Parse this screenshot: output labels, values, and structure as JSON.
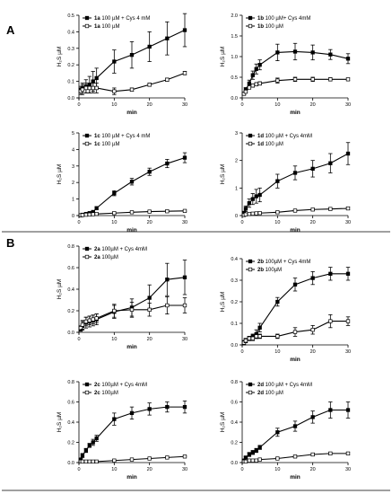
{
  "panel_labels": [
    "A",
    "B"
  ],
  "chart_data": [
    {
      "type": "line",
      "panel": "A",
      "xlabel": "min",
      "ylabel": "H₂S µM",
      "xlim": [
        0,
        30
      ],
      "ylim": [
        0,
        0.5
      ],
      "xticks": [
        "0",
        "10",
        "20",
        "30"
      ],
      "yticks": [
        "0.0",
        "0.1",
        "0.2",
        "0.3",
        "0.4",
        "0.5"
      ],
      "series": [
        {
          "compound": "1a",
          "label": " 100 µM + Cys 4 mM",
          "marker": "square-filled",
          "x": [
            0.5,
            1,
            2,
            3,
            4,
            5,
            10,
            15,
            20,
            25,
            30
          ],
          "y": [
            0.05,
            0.06,
            0.07,
            0.08,
            0.1,
            0.12,
            0.22,
            0.26,
            0.31,
            0.36,
            0.41
          ],
          "err": [
            0.02,
            0.03,
            0.04,
            0.05,
            0.06,
            0.06,
            0.07,
            0.08,
            0.09,
            0.1,
            0.1
          ]
        },
        {
          "compound": "1a",
          "label": " 100 µM",
          "marker": "square-open",
          "x": [
            0.5,
            1,
            2,
            3,
            4,
            5,
            10,
            15,
            20,
            25,
            30
          ],
          "y": [
            0.04,
            0.05,
            0.06,
            0.06,
            0.06,
            0.06,
            0.04,
            0.05,
            0.08,
            0.11,
            0.15
          ],
          "err": [
            0.02,
            0.03,
            0.03,
            0.03,
            0.03,
            0.03,
            0.02,
            0.01,
            0.01,
            0.01,
            0.01
          ]
        }
      ]
    },
    {
      "type": "line",
      "panel": "A",
      "xlabel": "min",
      "ylabel": "H₂S µM",
      "xlim": [
        0,
        30
      ],
      "ylim": [
        0,
        2.0
      ],
      "xticks": [
        "0",
        "10",
        "20",
        "30"
      ],
      "yticks": [
        "0.0",
        "0.5",
        "1.0",
        "1.5",
        "2.0"
      ],
      "series": [
        {
          "compound": "1b",
          "label": " 100 µM+ Cys 4mM",
          "marker": "square-filled",
          "x": [
            0.5,
            1,
            2,
            3,
            4,
            5,
            10,
            15,
            20,
            25,
            30
          ],
          "y": [
            0.1,
            0.2,
            0.35,
            0.55,
            0.7,
            0.8,
            1.1,
            1.12,
            1.1,
            1.05,
            0.95
          ],
          "err": [
            0.02,
            0.05,
            0.08,
            0.1,
            0.12,
            0.12,
            0.2,
            0.2,
            0.18,
            0.12,
            0.12
          ]
        },
        {
          "compound": "1b",
          "label": " 100 µM",
          "marker": "square-open",
          "x": [
            0.5,
            1,
            2,
            3,
            4,
            5,
            10,
            15,
            20,
            25,
            30
          ],
          "y": [
            0.1,
            0.15,
            0.25,
            0.3,
            0.33,
            0.35,
            0.42,
            0.45,
            0.45,
            0.45,
            0.45
          ],
          "err": [
            0.02,
            0.03,
            0.03,
            0.04,
            0.04,
            0.04,
            0.06,
            0.05,
            0.05,
            0.04,
            0.03
          ]
        }
      ]
    },
    {
      "type": "line",
      "panel": "A",
      "xlabel": "min",
      "ylabel": "H₂S µM",
      "xlim": [
        0,
        30
      ],
      "ylim": [
        0,
        5
      ],
      "xticks": [
        "0",
        "10",
        "20",
        "30"
      ],
      "yticks": [
        "0",
        "1",
        "2",
        "3",
        "4",
        "5"
      ],
      "series": [
        {
          "compound": "1c",
          "label": " 100 µM + Cys 4 mM",
          "marker": "square-filled",
          "x": [
            0.5,
            1,
            2,
            3,
            4,
            5,
            10,
            15,
            20,
            25,
            30
          ],
          "y": [
            0.02,
            0.05,
            0.1,
            0.15,
            0.22,
            0.45,
            1.35,
            2.05,
            2.65,
            3.15,
            3.5
          ],
          "err": [
            0.01,
            0.02,
            0.03,
            0.04,
            0.05,
            0.08,
            0.15,
            0.2,
            0.22,
            0.25,
            0.3
          ]
        },
        {
          "compound": "1c",
          "label": " 100 µM",
          "marker": "square-open",
          "x": [
            0.5,
            1,
            2,
            3,
            4,
            5,
            10,
            15,
            20,
            25,
            30
          ],
          "y": [
            0.02,
            0.03,
            0.05,
            0.06,
            0.08,
            0.1,
            0.15,
            0.2,
            0.24,
            0.26,
            0.28
          ],
          "err": [
            0.01,
            0.01,
            0.01,
            0.01,
            0.02,
            0.02,
            0.02,
            0.03,
            0.03,
            0.04,
            0.04
          ]
        }
      ]
    },
    {
      "type": "line",
      "panel": "A",
      "xlabel": "min",
      "ylabel": "H₂S µM",
      "xlim": [
        0,
        30
      ],
      "ylim": [
        0,
        3
      ],
      "xticks": [
        "0",
        "10",
        "20",
        "30"
      ],
      "yticks": [
        "0",
        "1",
        "2",
        "3"
      ],
      "series": [
        {
          "compound": "1d",
          "label": " 100 µM + Cys 4mM",
          "marker": "square-filled",
          "x": [
            0.5,
            1,
            2,
            3,
            4,
            5,
            10,
            15,
            20,
            25,
            30
          ],
          "y": [
            0.1,
            0.25,
            0.45,
            0.6,
            0.7,
            0.75,
            1.25,
            1.55,
            1.7,
            1.9,
            2.25
          ],
          "err": [
            0.05,
            0.1,
            0.15,
            0.2,
            0.25,
            0.25,
            0.25,
            0.25,
            0.3,
            0.35,
            0.4
          ]
        },
        {
          "compound": "1d",
          "label": " 100 µM",
          "marker": "square-open",
          "x": [
            0.5,
            1,
            2,
            3,
            4,
            5,
            10,
            15,
            20,
            25,
            30
          ],
          "y": [
            0.02,
            0.04,
            0.06,
            0.07,
            0.08,
            0.09,
            0.12,
            0.18,
            0.22,
            0.24,
            0.26
          ],
          "err": [
            0.01,
            0.01,
            0.02,
            0.02,
            0.02,
            0.02,
            0.02,
            0.03,
            0.03,
            0.04,
            0.04
          ]
        }
      ]
    },
    {
      "type": "line",
      "panel": "B",
      "xlabel": "min",
      "ylabel": "H₂S µM",
      "xlim": [
        0,
        30
      ],
      "ylim": [
        0,
        0.8
      ],
      "xticks": [
        "0",
        "10",
        "20",
        "30"
      ],
      "yticks": [
        "0.0",
        "0.2",
        "0.4",
        "0.6",
        "0.8"
      ],
      "series": [
        {
          "compound": "2a",
          "label": " 100µM + Cys 4mM",
          "marker": "square-filled",
          "x": [
            0.5,
            1,
            2,
            3,
            4,
            5,
            10,
            15,
            20,
            25,
            30
          ],
          "y": [
            0.03,
            0.06,
            0.09,
            0.1,
            0.11,
            0.12,
            0.19,
            0.23,
            0.32,
            0.49,
            0.51
          ],
          "err": [
            0.02,
            0.04,
            0.05,
            0.05,
            0.05,
            0.05,
            0.06,
            0.08,
            0.12,
            0.15,
            0.16
          ]
        },
        {
          "compound": "2a",
          "label": " 100µM",
          "marker": "square-open",
          "x": [
            0.5,
            1,
            2,
            3,
            4,
            5,
            10,
            15,
            20,
            25,
            30
          ],
          "y": [
            0.04,
            0.07,
            0.1,
            0.11,
            0.12,
            0.13,
            0.2,
            0.21,
            0.21,
            0.25,
            0.25
          ],
          "err": [
            0.02,
            0.04,
            0.04,
            0.04,
            0.04,
            0.04,
            0.06,
            0.07,
            0.06,
            0.08,
            0.07
          ]
        }
      ]
    },
    {
      "type": "line",
      "panel": "B",
      "xlabel": "min",
      "ylabel": "H₂S µM",
      "xlim": [
        0,
        30
      ],
      "ylim": [
        0,
        0.4
      ],
      "xticks": [
        "0",
        "10",
        "20",
        "30"
      ],
      "yticks": [
        "0.0",
        "0.1",
        "0.2",
        "0.3",
        "0.4"
      ],
      "series": [
        {
          "compound": "2b",
          "label": " 100µM + Cys 4mM",
          "marker": "square-filled",
          "x": [
            0.5,
            1,
            2,
            3,
            4,
            5,
            10,
            15,
            20,
            25,
            30
          ],
          "y": [
            0.01,
            0.02,
            0.03,
            0.04,
            0.05,
            0.08,
            0.2,
            0.28,
            0.31,
            0.33,
            0.33
          ],
          "err": [
            0.01,
            0.01,
            0.01,
            0.01,
            0.02,
            0.02,
            0.02,
            0.03,
            0.03,
            0.03,
            0.03
          ]
        },
        {
          "compound": "2b",
          "label": " 100µM",
          "marker": "square-open",
          "x": [
            0.5,
            1,
            2,
            3,
            4,
            5,
            10,
            15,
            20,
            25,
            30
          ],
          "y": [
            0.01,
            0.02,
            0.03,
            0.03,
            0.04,
            0.04,
            0.04,
            0.06,
            0.07,
            0.11,
            0.11
          ],
          "err": [
            0.01,
            0.01,
            0.01,
            0.01,
            0.01,
            0.01,
            0.01,
            0.02,
            0.02,
            0.03,
            0.02
          ]
        }
      ]
    },
    {
      "type": "line",
      "panel": "B",
      "xlabel": "min",
      "ylabel": "H₂S µM",
      "xlim": [
        0,
        30
      ],
      "ylim": [
        0,
        0.8
      ],
      "xticks": [
        "0",
        "10",
        "20",
        "30"
      ],
      "yticks": [
        "0.0",
        "0.2",
        "0.4",
        "0.6",
        "0.8"
      ],
      "series": [
        {
          "compound": "2c",
          "label": " 100µM + Cys 4mM",
          "marker": "square-filled",
          "x": [
            0.5,
            1,
            2,
            3,
            4,
            5,
            10,
            15,
            20,
            25,
            30
          ],
          "y": [
            0.03,
            0.07,
            0.12,
            0.17,
            0.2,
            0.24,
            0.43,
            0.49,
            0.53,
            0.55,
            0.55
          ],
          "err": [
            0.01,
            0.02,
            0.02,
            0.02,
            0.03,
            0.03,
            0.06,
            0.06,
            0.06,
            0.05,
            0.06
          ]
        },
        {
          "compound": "2c",
          "label": " 100µM",
          "marker": "square-open",
          "x": [
            0.5,
            1,
            2,
            3,
            4,
            5,
            10,
            15,
            20,
            25,
            30
          ],
          "y": [
            0.01,
            0.01,
            0.01,
            0.01,
            0.01,
            0.01,
            0.02,
            0.03,
            0.04,
            0.05,
            0.06
          ],
          "err": [
            0.005,
            0.005,
            0.005,
            0.005,
            0.005,
            0.005,
            0.005,
            0.005,
            0.005,
            0.005,
            0.005
          ]
        }
      ]
    },
    {
      "type": "line",
      "panel": "B",
      "xlabel": "min",
      "ylabel": "H₂S µM",
      "xlim": [
        0,
        30
      ],
      "ylim": [
        0,
        0.8
      ],
      "xticks": [
        "0",
        "10",
        "20",
        "30"
      ],
      "yticks": [
        "0.0",
        "0.2",
        "0.4",
        "0.6",
        "0.8"
      ],
      "series": [
        {
          "compound": "2d",
          "label": " 100 µM + Cys 4mM",
          "marker": "square-filled",
          "x": [
            0.5,
            1,
            2,
            3,
            4,
            5,
            10,
            15,
            20,
            25,
            30
          ],
          "y": [
            0.02,
            0.05,
            0.08,
            0.1,
            0.12,
            0.15,
            0.3,
            0.36,
            0.45,
            0.52,
            0.52
          ],
          "err": [
            0.01,
            0.01,
            0.02,
            0.02,
            0.02,
            0.02,
            0.04,
            0.05,
            0.06,
            0.08,
            0.08
          ]
        },
        {
          "compound": "2d",
          "label": " 100 µM",
          "marker": "square-open",
          "x": [
            0.5,
            1,
            2,
            3,
            4,
            5,
            10,
            15,
            20,
            25,
            30
          ],
          "y": [
            0.01,
            0.01,
            0.02,
            0.02,
            0.02,
            0.03,
            0.04,
            0.06,
            0.08,
            0.09,
            0.09
          ],
          "err": [
            0.005,
            0.005,
            0.005,
            0.005,
            0.005,
            0.005,
            0.01,
            0.01,
            0.01,
            0.01,
            0.01
          ]
        }
      ]
    }
  ]
}
